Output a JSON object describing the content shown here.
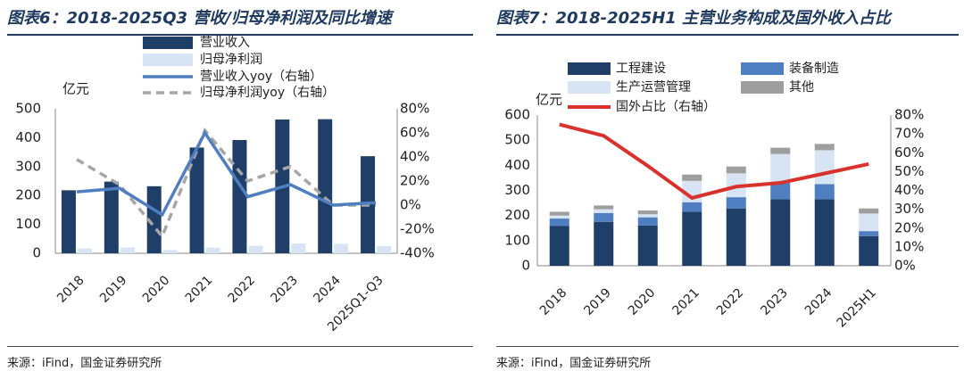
{
  "left_panel": {
    "title": "图表6：2018-2025Q3 营收/归母净利润及同比增速",
    "source": "来源：iFind，国金证券研究所"
  },
  "right_panel": {
    "title": "图表7：2018-2025H1 主营业务构成及国外收入占比",
    "source": "来源：iFind，国金证券研究所"
  },
  "colors": {
    "navy": "#1f3f68",
    "light": "#d6e4f3",
    "blue_line": "#4f7fc0",
    "gray_dash": "#a6a6a6",
    "mid_blue": "#4f7fc0",
    "gray": "#9e9e9e",
    "red": "#d9312b"
  },
  "chart_data": [
    {
      "type": "bar+line",
      "unit_label": "亿元",
      "categories": [
        "2018",
        "2019",
        "2020",
        "2021",
        "2022",
        "2023",
        "2024",
        "2025Q1-Q3"
      ],
      "bars": [
        {
          "name": "营业收入",
          "values": [
            218,
            248,
            232,
            366,
            392,
            463,
            464,
            336
          ]
        },
        {
          "name": "归母净利润",
          "values": [
            17,
            20,
            11,
            20,
            26,
            34,
            33,
            25
          ]
        }
      ],
      "lines": [
        {
          "name": "营业收入yoy（右轴）",
          "values": [
            11,
            14,
            -8,
            60,
            7,
            17,
            0,
            2
          ]
        },
        {
          "name": "归母净利润yoy（右轴）",
          "values": [
            38,
            17,
            -26,
            62,
            20,
            32,
            0,
            0
          ]
        }
      ],
      "y_left": {
        "min": 0,
        "max": 500,
        "ticks": [
          "0",
          "100",
          "200",
          "300",
          "400",
          "500"
        ]
      },
      "y_right": {
        "min": -40,
        "max": 80,
        "ticks": [
          "-40%",
          "-20%",
          "0%",
          "20%",
          "40%",
          "60%",
          "80%"
        ]
      }
    },
    {
      "type": "stacked-bar+line",
      "unit_label": "亿元",
      "categories": [
        "2018",
        "2019",
        "2020",
        "2021",
        "2022",
        "2023",
        "2024",
        "2025H1"
      ],
      "series": [
        {
          "name": "工程建设",
          "values": [
            158,
            175,
            160,
            215,
            228,
            265,
            265,
            118
          ]
        },
        {
          "name": "装备制造",
          "values": [
            30,
            35,
            33,
            38,
            45,
            65,
            60,
            20
          ]
        },
        {
          "name": "生产运营管理",
          "values": [
            12,
            15,
            12,
            85,
            95,
            115,
            135,
            70
          ]
        },
        {
          "name": "其他",
          "values": [
            15,
            15,
            15,
            25,
            27,
            25,
            25,
            20
          ]
        }
      ],
      "line": {
        "name": "国外占比（右轴）",
        "values": [
          75,
          69,
          53,
          36,
          42,
          44,
          49,
          54
        ]
      },
      "y_left": {
        "min": 0,
        "max": 600,
        "ticks": [
          "0",
          "100",
          "200",
          "300",
          "400",
          "500",
          "600"
        ]
      },
      "y_right": {
        "min": 0,
        "max": 80,
        "ticks": [
          "0%",
          "10%",
          "20%",
          "30%",
          "40%",
          "50%",
          "60%",
          "70%",
          "80%"
        ]
      }
    }
  ]
}
